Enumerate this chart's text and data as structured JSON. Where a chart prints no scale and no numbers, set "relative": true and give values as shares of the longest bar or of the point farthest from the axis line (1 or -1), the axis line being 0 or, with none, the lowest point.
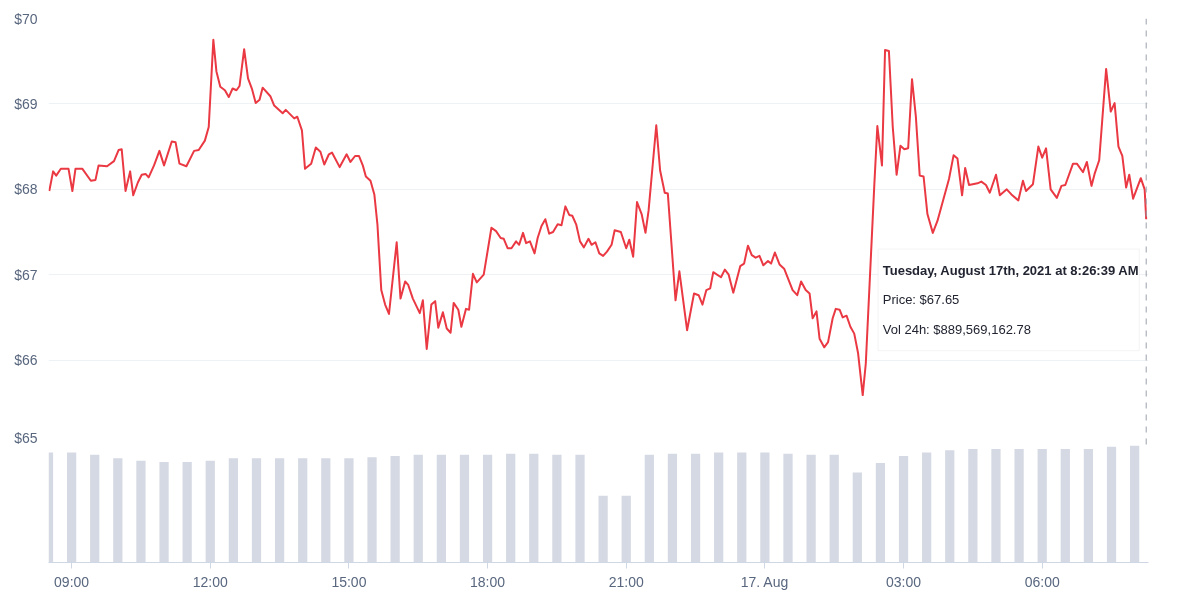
{
  "chart_data": [
    {
      "type": "line",
      "x": [
        "2021-08-16T08:31",
        "2021-08-16T08:36",
        "2021-08-16T08:40",
        "2021-08-16T08:46",
        "2021-08-16T08:56",
        "2021-08-16T09:01",
        "2021-08-16T09:05",
        "2021-08-16T09:14",
        "2021-08-16T09:25",
        "2021-08-16T09:31",
        "2021-08-16T09:35",
        "2021-08-16T09:46",
        "2021-08-16T09:55",
        "2021-08-16T10:01",
        "2021-08-16T10:05",
        "2021-08-16T10:10",
        "2021-08-16T10:16",
        "2021-08-16T10:20",
        "2021-08-16T10:26",
        "2021-08-16T10:31",
        "2021-08-16T10:36",
        "2021-08-16T10:40",
        "2021-08-16T10:47",
        "2021-08-16T10:54",
        "2021-08-16T11:00",
        "2021-08-16T11:10",
        "2021-08-16T11:15",
        "2021-08-16T11:20",
        "2021-08-16T11:29",
        "2021-08-16T11:39",
        "2021-08-16T11:45",
        "2021-08-16T11:53",
        "2021-08-16T11:58",
        "2021-08-16T12:04",
        "2021-08-16T12:08",
        "2021-08-16T12:13",
        "2021-08-16T12:19",
        "2021-08-16T12:24",
        "2021-08-16T12:29",
        "2021-08-16T12:34",
        "2021-08-16T12:38",
        "2021-08-16T12:44",
        "2021-08-16T12:49",
        "2021-08-16T12:54",
        "2021-08-16T12:59",
        "2021-08-16T13:04",
        "2021-08-16T13:08",
        "2021-08-16T13:18",
        "2021-08-16T13:23",
        "2021-08-16T13:34",
        "2021-08-16T13:38",
        "2021-08-16T13:49",
        "2021-08-16T13:53",
        "2021-08-16T13:59",
        "2021-08-16T14:03",
        "2021-08-16T14:11",
        "2021-08-16T14:17",
        "2021-08-16T14:23",
        "2021-08-16T14:28",
        "2021-08-16T14:34",
        "2021-08-16T14:38",
        "2021-08-16T14:48",
        "2021-08-16T14:57",
        "2021-08-16T15:02",
        "2021-08-16T15:08",
        "2021-08-16T15:13",
        "2021-08-16T15:18",
        "2021-08-16T15:22",
        "2021-08-16T15:28",
        "2021-08-16T15:33",
        "2021-08-16T15:37",
        "2021-08-16T15:42",
        "2021-08-16T15:47",
        "2021-08-16T15:52",
        "2021-08-16T16:02",
        "2021-08-16T16:07",
        "2021-08-16T16:13",
        "2021-08-16T16:17",
        "2021-08-16T16:23",
        "2021-08-16T16:32",
        "2021-08-16T16:36",
        "2021-08-16T16:41",
        "2021-08-16T16:47",
        "2021-08-16T16:52",
        "2021-08-16T16:56",
        "2021-08-16T17:02",
        "2021-08-16T17:07",
        "2021-08-16T17:12",
        "2021-08-16T17:16",
        "2021-08-16T17:22",
        "2021-08-16T17:26",
        "2021-08-16T17:32",
        "2021-08-16T17:36",
        "2021-08-16T17:41",
        "2021-08-16T17:46",
        "2021-08-16T17:55",
        "2021-08-16T18:05",
        "2021-08-16T18:11",
        "2021-08-16T18:17",
        "2021-08-16T18:21",
        "2021-08-16T18:26",
        "2021-08-16T18:31",
        "2021-08-16T18:37",
        "2021-08-16T18:41",
        "2021-08-16T18:46",
        "2021-08-16T18:50",
        "2021-08-16T18:55",
        "2021-08-16T19:01",
        "2021-08-16T19:05",
        "2021-08-16T19:10",
        "2021-08-16T19:15",
        "2021-08-16T19:20",
        "2021-08-16T19:25",
        "2021-08-16T19:31",
        "2021-08-16T19:36",
        "2021-08-16T19:41",
        "2021-08-16T19:46",
        "2021-08-16T19:50",
        "2021-08-16T19:55",
        "2021-08-16T20:00",
        "2021-08-16T20:05",
        "2021-08-16T20:11",
        "2021-08-16T20:15",
        "2021-08-16T20:20",
        "2021-08-16T20:25",
        "2021-08-16T20:30",
        "2021-08-16T20:35",
        "2021-08-16T20:41",
        "2021-08-16T20:45",
        "2021-08-16T20:53",
        "2021-08-16T21:00",
        "2021-08-16T21:04",
        "2021-08-16T21:09",
        "2021-08-16T21:14",
        "2021-08-16T21:20",
        "2021-08-16T21:25",
        "2021-08-16T21:29",
        "2021-08-16T21:39",
        "2021-08-16T21:44",
        "2021-08-16T21:50",
        "2021-08-16T21:54",
        "2021-08-16T22:04",
        "2021-08-16T22:09",
        "2021-08-16T22:19",
        "2021-08-16T22:28",
        "2021-08-16T22:34",
        "2021-08-16T22:39",
        "2021-08-16T22:44",
        "2021-08-16T22:49",
        "2021-08-16T22:53",
        "2021-08-16T23:03",
        "2021-08-16T23:08",
        "2021-08-16T23:13",
        "2021-08-16T23:19",
        "2021-08-16T23:28",
        "2021-08-16T23:33",
        "2021-08-16T23:38",
        "2021-08-16T23:43",
        "2021-08-16T23:48",
        "2021-08-16T23:53",
        "2021-08-16T23:58",
        "2021-08-17T00:04",
        "2021-08-17T00:08",
        "2021-08-17T00:13",
        "2021-08-17T00:19",
        "2021-08-17T00:25",
        "2021-08-17T00:36",
        "2021-08-17T00:42",
        "2021-08-17T00:47",
        "2021-08-17T00:53",
        "2021-08-17T00:58",
        "2021-08-17T01:02",
        "2021-08-17T01:07",
        "2021-08-17T01:11",
        "2021-08-17T01:17",
        "2021-08-17T01:22",
        "2021-08-17T01:28",
        "2021-08-17T01:32",
        "2021-08-17T01:37",
        "2021-08-17T01:41",
        "2021-08-17T01:46",
        "2021-08-17T01:51",
        "2021-08-17T01:56",
        "2021-08-17T02:01",
        "2021-08-17T02:07",
        "2021-08-17T02:11",
        "2021-08-17T02:22",
        "2021-08-17T02:26",
        "2021-08-17T02:32",
        "2021-08-17T02:36",
        "2021-08-17T02:41",
        "2021-08-17T02:46",
        "2021-08-17T02:51",
        "2021-08-17T02:56",
        "2021-08-17T03:01",
        "2021-08-17T03:06",
        "2021-08-17T03:11",
        "2021-08-17T03:16",
        "2021-08-17T03:21",
        "2021-08-17T03:26",
        "2021-08-17T03:31",
        "2021-08-17T03:38",
        "2021-08-17T03:44",
        "2021-08-17T03:59",
        "2021-08-17T04:05",
        "2021-08-17T04:10",
        "2021-08-17T04:16",
        "2021-08-17T04:20",
        "2021-08-17T04:25",
        "2021-08-17T04:36",
        "2021-08-17T04:41",
        "2021-08-17T04:47",
        "2021-08-17T04:52",
        "2021-08-17T05:00",
        "2021-08-17T05:05",
        "2021-08-17T05:14",
        "2021-08-17T05:20",
        "2021-08-17T05:29",
        "2021-08-17T05:35",
        "2021-08-17T05:39",
        "2021-08-17T05:48",
        "2021-08-17T05:55",
        "2021-08-17T06:00",
        "2021-08-17T06:05",
        "2021-08-17T06:11",
        "2021-08-17T06:19",
        "2021-08-17T06:25",
        "2021-08-17T06:30",
        "2021-08-17T06:40",
        "2021-08-17T06:45",
        "2021-08-17T06:53",
        "2021-08-17T06:58",
        "2021-08-17T07:04",
        "2021-08-17T07:08",
        "2021-08-17T07:14",
        "2021-08-17T07:23",
        "2021-08-17T07:29",
        "2021-08-17T07:34",
        "2021-08-17T07:39",
        "2021-08-17T07:44",
        "2021-08-17T07:49",
        "2021-08-17T07:53",
        "2021-08-17T07:58",
        "2021-08-17T08:08",
        "2021-08-17T08:13",
        "2021-08-17T08:15"
      ],
      "series": [
        {
          "color": "#ea3943",
          "values": [
            67.98,
            68.21,
            68.16,
            68.24,
            68.24,
            67.98,
            68.24,
            68.24,
            68.1,
            68.11,
            68.28,
            68.27,
            68.33,
            68.46,
            68.47,
            67.98,
            68.21,
            67.93,
            68.08,
            68.17,
            68.18,
            68.14,
            68.28,
            68.45,
            68.28,
            68.56,
            68.55,
            68.3,
            68.27,
            68.45,
            68.46,
            68.57,
            68.73,
            69.75,
            69.38,
            69.2,
            69.16,
            69.08,
            69.18,
            69.16,
            69.21,
            69.64,
            69.3,
            69.18,
            69.01,
            69.05,
            69.19,
            69.09,
            68.98,
            68.89,
            68.93,
            68.83,
            68.85,
            68.69,
            68.24,
            68.3,
            68.49,
            68.44,
            68.29,
            68.41,
            68.43,
            68.26,
            68.41,
            68.32,
            68.39,
            68.39,
            68.28,
            68.15,
            68.1,
            67.94,
            67.59,
            66.82,
            66.65,
            66.54,
            67.38,
            66.72,
            66.92,
            66.88,
            66.72,
            66.55,
            66.7,
            66.13,
            66.65,
            66.69,
            66.38,
            66.56,
            66.37,
            66.32,
            66.67,
            66.59,
            66.39,
            66.6,
            66.59,
            67.01,
            66.91,
            67.0,
            67.55,
            67.51,
            67.43,
            67.42,
            67.31,
            67.31,
            67.39,
            67.35,
            67.49,
            67.37,
            67.39,
            67.25,
            67.43,
            67.57,
            67.65,
            67.48,
            67.5,
            67.59,
            67.58,
            67.8,
            67.7,
            67.69,
            67.59,
            67.39,
            67.32,
            67.42,
            67.35,
            67.38,
            67.25,
            67.22,
            67.27,
            67.35,
            67.52,
            67.5,
            67.31,
            67.41,
            67.21,
            67.85,
            67.71,
            67.49,
            67.75,
            68.75,
            68.22,
            67.96,
            67.95,
            66.7,
            67.04,
            66.35,
            66.78,
            66.76,
            66.65,
            66.82,
            66.84,
            67.03,
            66.97,
            67.06,
            67.0,
            66.79,
            67.1,
            67.13,
            67.34,
            67.23,
            67.2,
            67.22,
            67.11,
            67.16,
            67.13,
            67.26,
            67.12,
            67.07,
            66.82,
            66.76,
            66.92,
            66.82,
            66.78,
            66.49,
            66.57,
            66.25,
            66.15,
            66.21,
            66.49,
            66.6,
            66.59,
            66.5,
            66.52,
            66.39,
            66.31,
            66.08,
            65.59,
            65.96,
            68.04,
            68.74,
            68.28,
            69.63,
            69.62,
            68.73,
            68.17,
            68.51,
            68.47,
            68.48,
            69.29,
            68.85,
            68.16,
            68.15,
            67.71,
            67.49,
            67.63,
            68.12,
            68.4,
            68.36,
            67.93,
            68.25,
            68.05,
            68.07,
            68.09,
            68.05,
            67.96,
            68.17,
            67.93,
            68.0,
            67.94,
            67.87,
            68.1,
            67.98,
            68.06,
            68.5,
            68.37,
            68.48,
            68.0,
            67.9,
            68.04,
            68.05,
            68.3,
            68.3,
            68.2,
            68.32,
            68.04,
            68.18,
            68.34,
            69.41,
            68.91,
            69.01,
            68.5,
            68.39,
            68.02,
            68.17,
            67.89,
            68.13,
            68.0,
            67.65
          ]
        }
      ],
      "xlim": [
        "2021-08-16T08:30",
        "2021-08-17T08:18"
      ],
      "ylim": [
        65,
        70
      ],
      "yticks": [
        {
          "value": 65,
          "label": "$65"
        },
        {
          "value": 66,
          "label": "$66"
        },
        {
          "value": 67,
          "label": "$67"
        },
        {
          "value": 68,
          "label": "$68"
        },
        {
          "value": 69,
          "label": "$69"
        },
        {
          "value": 70,
          "label": "$70"
        }
      ],
      "grid": "y",
      "tick_labels": "y",
      "ref_lines": [
        {
          "axis": "x",
          "value": "2021-08-17T08:15",
          "color": "#9aa0ab",
          "line_style": "dashed"
        }
      ],
      "annotations": [
        "Tuesday, August 17th, 2021 at 8:26:39 AM",
        "Price: $67.65",
        "Vol 24h: $889,569,162.78"
      ]
    },
    {
      "type": "bar",
      "relative": true,
      "color": "#d5d9e3",
      "x": [
        "2021-08-16T08:30",
        "2021-08-16T09:00",
        "2021-08-16T09:30",
        "2021-08-16T10:00",
        "2021-08-16T10:30",
        "2021-08-16T11:00",
        "2021-08-16T11:30",
        "2021-08-16T12:00",
        "2021-08-16T12:30",
        "2021-08-16T13:00",
        "2021-08-16T13:30",
        "2021-08-16T14:00",
        "2021-08-16T14:30",
        "2021-08-16T15:00",
        "2021-08-16T15:30",
        "2021-08-16T16:00",
        "2021-08-16T16:30",
        "2021-08-16T17:00",
        "2021-08-16T17:30",
        "2021-08-16T18:00",
        "2021-08-16T18:30",
        "2021-08-16T19:00",
        "2021-08-16T19:30",
        "2021-08-16T20:00",
        "2021-08-16T20:30",
        "2021-08-16T21:00",
        "2021-08-16T21:30",
        "2021-08-16T22:00",
        "2021-08-16T22:30",
        "2021-08-16T23:00",
        "2021-08-16T23:30",
        "2021-08-17T00:00",
        "2021-08-17T00:30",
        "2021-08-17T01:00",
        "2021-08-17T01:30",
        "2021-08-17T02:00",
        "2021-08-17T02:30",
        "2021-08-17T03:00",
        "2021-08-17T03:30",
        "2021-08-17T04:00",
        "2021-08-17T04:30",
        "2021-08-17T05:00",
        "2021-08-17T05:30",
        "2021-08-17T06:00",
        "2021-08-17T06:30",
        "2021-08-17T07:00",
        "2021-08-17T07:30",
        "2021-08-17T08:00"
      ],
      "values": [
        0.94,
        0.94,
        0.92,
        0.89,
        0.87,
        0.86,
        0.86,
        0.87,
        0.89,
        0.89,
        0.89,
        0.89,
        0.89,
        0.89,
        0.9,
        0.91,
        0.92,
        0.92,
        0.92,
        0.92,
        0.93,
        0.93,
        0.92,
        0.92,
        0.57,
        0.57,
        0.92,
        0.93,
        0.93,
        0.94,
        0.94,
        0.94,
        0.93,
        0.92,
        0.92,
        0.77,
        0.85,
        0.91,
        0.94,
        0.96,
        0.97,
        0.97,
        0.97,
        0.97,
        0.97,
        0.97,
        0.99,
        1.0
      ],
      "xlim": [
        "2021-08-16T08:30",
        "2021-08-17T08:18"
      ],
      "xticks": [
        {
          "value": "2021-08-16T09:00",
          "label": "09:00"
        },
        {
          "value": "2021-08-16T12:00",
          "label": "12:00"
        },
        {
          "value": "2021-08-16T15:00",
          "label": "15:00"
        },
        {
          "value": "2021-08-16T18:00",
          "label": "18:00"
        },
        {
          "value": "2021-08-16T21:00",
          "label": "21:00"
        },
        {
          "value": "2021-08-17T00:00",
          "label": "17. Aug"
        },
        {
          "value": "2021-08-17T03:00",
          "label": "03:00"
        },
        {
          "value": "2021-08-17T06:00",
          "label": "06:00"
        }
      ]
    }
  ]
}
